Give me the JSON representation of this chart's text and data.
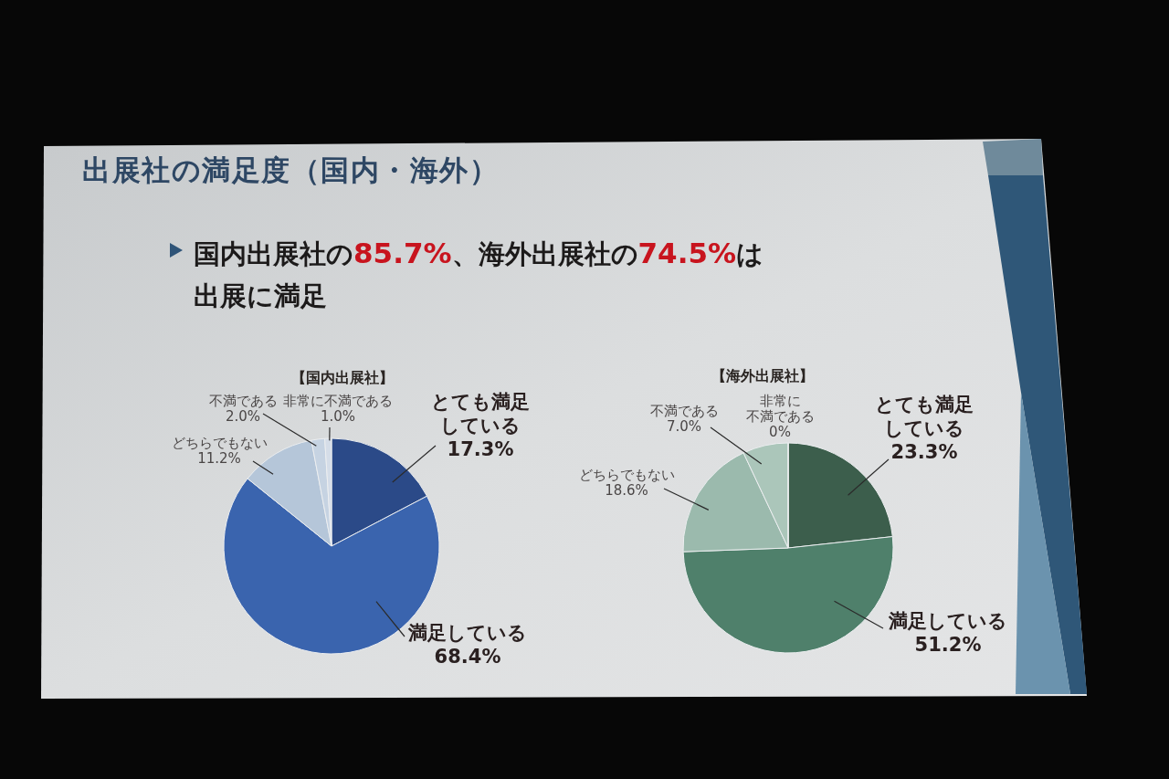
{
  "chart_data": [
    {
      "type": "other",
      "title": "出展社の満足度（国内・海外）",
      "subtitle": "国内出展社の85.7%、海外出展社の74.5%は出展に満足"
    },
    {
      "type": "pie",
      "title": "【国内出展社】",
      "categories": [
        "とても満足している",
        "満足している",
        "どちらでもない",
        "不満である",
        "非常に不満である"
      ],
      "values": [
        17.3,
        68.4,
        11.2,
        2.0,
        1.0
      ],
      "value_labels": [
        "17.3%",
        "68.4%",
        "11.2%",
        "2.0%",
        "1.0%"
      ],
      "colors": [
        "#2b4a88",
        "#3a64ae",
        "#b5c6d9",
        "#c6d3e2",
        "#d5dde8"
      ]
    },
    {
      "type": "pie",
      "title": "【海外出展社】",
      "categories": [
        "とても満足している",
        "満足している",
        "どちらでもない",
        "不満である",
        "非常に不満である"
      ],
      "values": [
        23.3,
        51.2,
        18.6,
        7.0,
        0
      ],
      "value_labels": [
        "23.3%",
        "51.2%",
        "18.6%",
        "7.0%",
        "0%"
      ],
      "colors": [
        "#3c5e4c",
        "#4f806b",
        "#9bbaad",
        "#abc6ba",
        "#c2d5cc"
      ]
    }
  ]
}
